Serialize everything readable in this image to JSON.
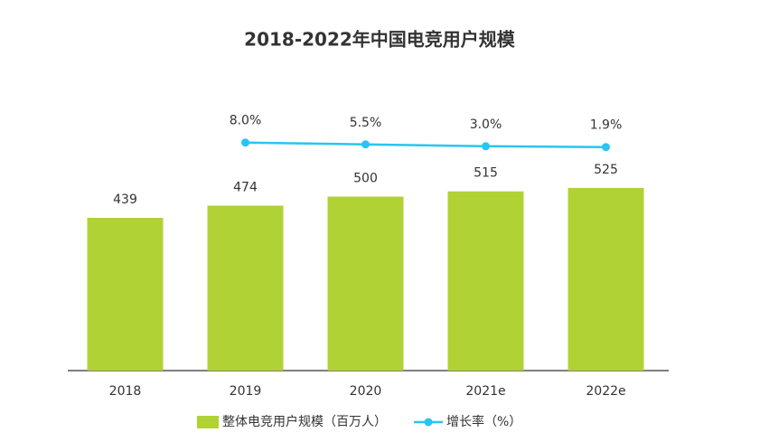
{
  "chart_data": {
    "type": "bar-line",
    "title": "2018-2022年中国电竞用户规模",
    "categories": [
      "2018",
      "2019",
      "2020",
      "2021e",
      "2022e"
    ],
    "series": [
      {
        "name": "整体电竞用户规模（百万人）",
        "type": "bar",
        "color": "#b1d235",
        "values": [
          439,
          474,
          500,
          515,
          525
        ]
      },
      {
        "name": "增长率（%）",
        "type": "line",
        "axis": "y2",
        "color": "#29c5f0",
        "values": [
          null,
          8.0,
          5.5,
          3.0,
          1.9
        ],
        "value_labels": [
          null,
          "8.0%",
          "5.5%",
          "3.0%",
          "1.9%"
        ]
      }
    ],
    "ylim": [
      0,
      1000
    ],
    "y2lim": [
      -300,
      170
    ]
  }
}
